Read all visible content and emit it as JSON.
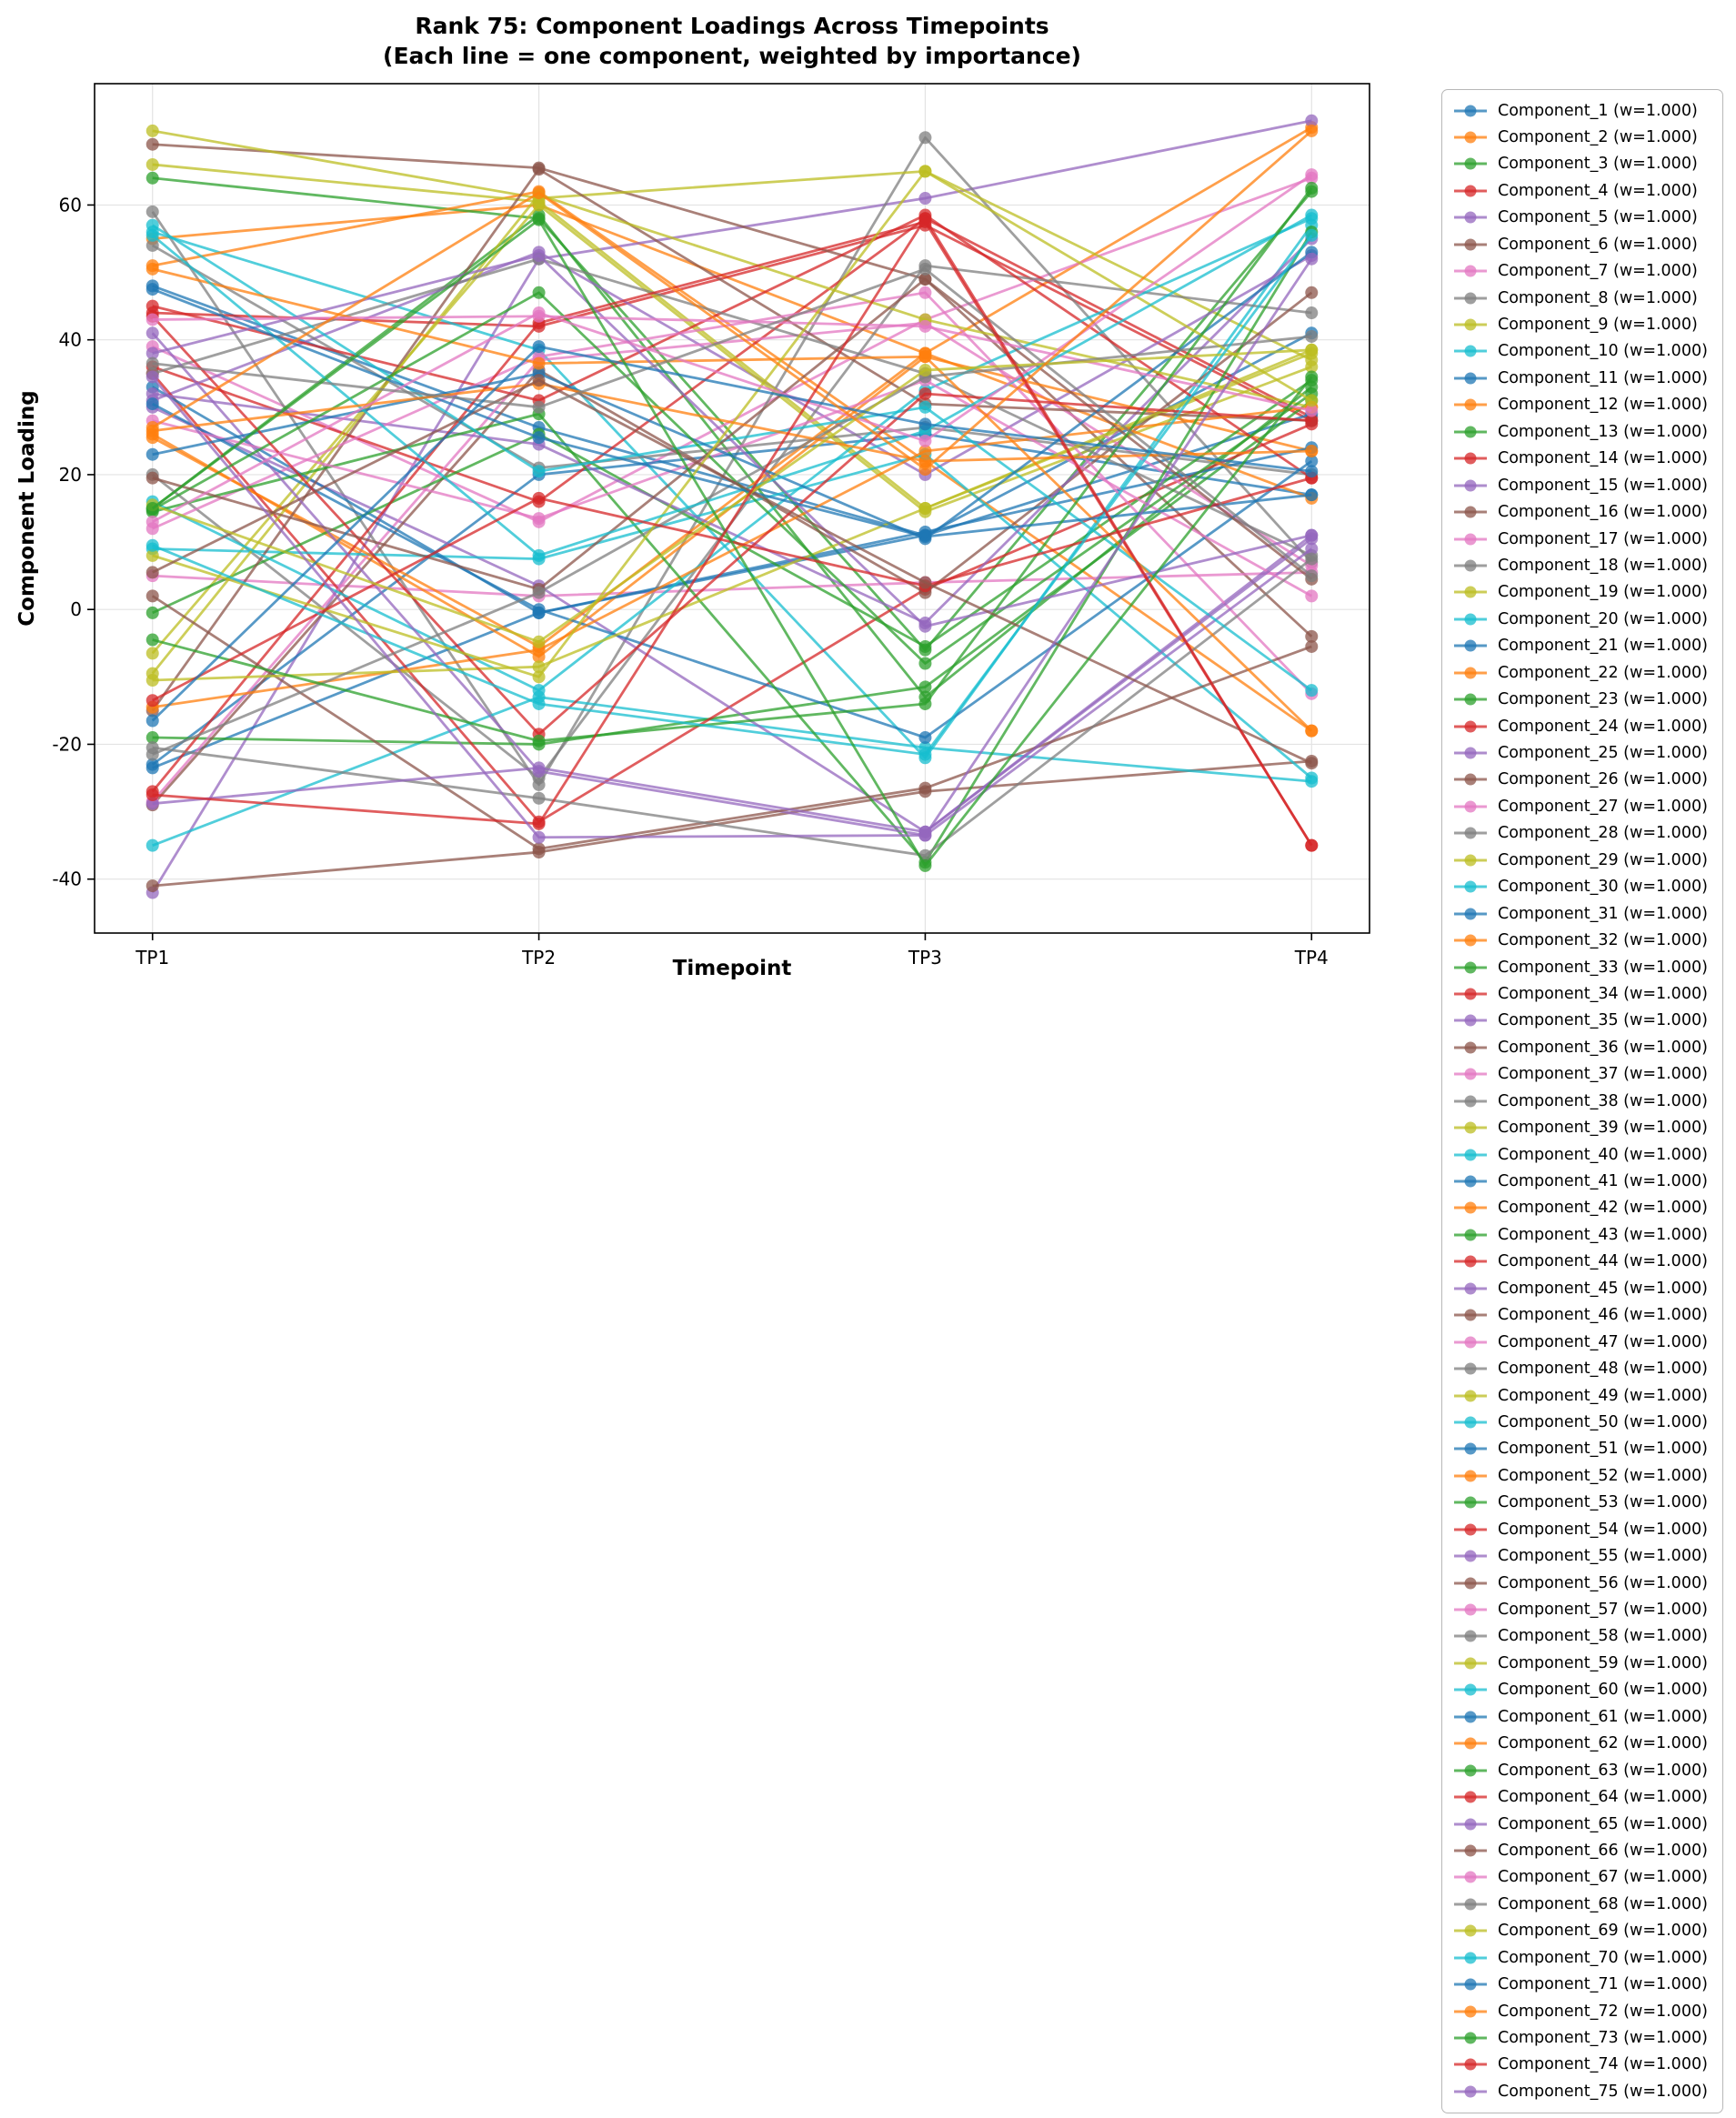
{
  "figure": {
    "title_line1": "Rank 75: Component Loadings Across Timepoints",
    "title_line2": "(Each line = one component, weighted by importance)",
    "xlabel": "Timepoint",
    "ylabel": "Component Loading"
  },
  "chart_data": {
    "type": "line",
    "title": "Rank 75: Component Loadings Across Timepoints (Each line = one component, weighted by importance)",
    "xlabel": "Timepoint",
    "ylabel": "Component Loading",
    "categories": [
      "TP1",
      "TP2",
      "TP3",
      "TP4"
    ],
    "y_ticks": [
      -40,
      -20,
      0,
      20,
      40,
      60
    ],
    "ylim": [
      -48,
      78
    ],
    "grid": true,
    "legend_position": "right",
    "marker": "circle",
    "line_alpha": 0.75,
    "palette": [
      "#1f77b4",
      "#ff7f0e",
      "#2ca02c",
      "#d62728",
      "#9467bd",
      "#8c564b",
      "#e377c2",
      "#7f7f7f",
      "#bcbd22",
      "#17becf"
    ],
    "series": [
      {
        "name": "Component_1",
        "label": "Component_1 (w=1.000)",
        "values": [
          48,
          27,
          11,
          41
        ]
      },
      {
        "name": "Component_2",
        "label": "Component_2 (w=1.000)",
        "values": [
          55,
          60,
          38,
          71.5
        ]
      },
      {
        "name": "Component_3",
        "label": "Component_3 (w=1.000)",
        "values": [
          64,
          58,
          -6,
          62
        ]
      },
      {
        "name": "Component_4",
        "label": "Component_4 (w=1.000)",
        "values": [
          44,
          42,
          57,
          28
        ]
      },
      {
        "name": "Component_5",
        "label": "Component_5 (w=1.000)",
        "values": [
          -42,
          52,
          61,
          72.5
        ]
      },
      {
        "name": "Component_6",
        "label": "Component_6 (w=1.000)",
        "values": [
          69,
          65.5,
          49,
          -4
        ]
      },
      {
        "name": "Component_7",
        "label": "Component_7 (w=1.000)",
        "values": [
          39,
          13,
          43,
          64
        ]
      },
      {
        "name": "Component_8",
        "label": "Component_8 (w=1.000)",
        "values": [
          59,
          -26,
          70,
          7
        ]
      },
      {
        "name": "Component_9",
        "label": "Component_9 (w=1.000)",
        "values": [
          71,
          61,
          65,
          37
        ]
      },
      {
        "name": "Component_10",
        "label": "Component_10 (w=1.000)",
        "values": [
          56,
          38.5,
          -22,
          57
        ]
      },
      {
        "name": "Component_11",
        "label": "Component_11 (w=1.000)",
        "values": [
          -23,
          20,
          26,
          17
        ]
      },
      {
        "name": "Component_12",
        "label": "Component_12 (w=1.000)",
        "values": [
          51,
          62,
          22,
          -18
        ]
      },
      {
        "name": "Component_13",
        "label": "Component_13 (w=1.000)",
        "values": [
          15,
          58.5,
          -13,
          33
        ]
      },
      {
        "name": "Component_14",
        "label": "Component_14 (w=1.000)",
        "values": [
          36,
          16,
          58,
          28.5
        ]
      },
      {
        "name": "Component_15",
        "label": "Component_15 (w=1.000)",
        "values": [
          31,
          53,
          20,
          52.5
        ]
      },
      {
        "name": "Component_16",
        "label": "Component_16 (w=1.000)",
        "values": [
          -41,
          -36,
          -27,
          -22.5
        ]
      },
      {
        "name": "Component_17",
        "label": "Component_17 (w=1.000)",
        "values": [
          5,
          2,
          4,
          5.5
        ]
      },
      {
        "name": "Component_18",
        "label": "Component_18 (w=1.000)",
        "values": [
          20,
          -25,
          51,
          44
        ]
      },
      {
        "name": "Component_19",
        "label": "Component_19 (w=1.000)",
        "values": [
          66,
          60.5,
          15,
          38
        ]
      },
      {
        "name": "Component_20",
        "label": "Component_20 (w=1.000)",
        "values": [
          -35,
          -13,
          -20.5,
          -25.5
        ]
      },
      {
        "name": "Component_21",
        "label": "Component_21 (w=1.000)",
        "values": [
          -23.5,
          -0.5,
          11,
          29
        ]
      },
      {
        "name": "Component_22",
        "label": "Component_22 (w=1.000)",
        "values": [
          26,
          -7,
          37.5,
          23.5
        ]
      },
      {
        "name": "Component_23",
        "label": "Component_23 (w=1.000)",
        "values": [
          -19,
          -20,
          -11.5,
          31
        ]
      },
      {
        "name": "Component_24",
        "label": "Component_24 (w=1.000)",
        "values": [
          35,
          -31.5,
          3,
          27.5
        ]
      },
      {
        "name": "Component_25",
        "label": "Component_25 (w=1.000)",
        "values": [
          30,
          3.5,
          -33,
          11
        ]
      },
      {
        "name": "Component_26",
        "label": "Component_26 (w=1.000)",
        "values": [
          -29,
          35.5,
          2.5,
          47
        ]
      },
      {
        "name": "Component_27",
        "label": "Component_27 (w=1.000)",
        "values": [
          -28.5,
          37,
          42.5,
          6.5
        ]
      },
      {
        "name": "Component_28",
        "label": "Component_28 (w=1.000)",
        "values": [
          54,
          21,
          27,
          20
        ]
      },
      {
        "name": "Component_29",
        "label": "Component_29 (w=1.000)",
        "values": [
          -6.5,
          60,
          14.5,
          36
        ]
      },
      {
        "name": "Component_30",
        "label": "Component_30 (w=1.000)",
        "values": [
          9,
          7.5,
          23,
          -25
        ]
      },
      {
        "name": "Component_31",
        "label": "Component_31 (w=1.000)",
        "values": [
          33,
          -0.5,
          11.5,
          24
        ]
      },
      {
        "name": "Component_32",
        "label": "Component_32 (w=1.000)",
        "values": [
          25.5,
          -5.5,
          38,
          16.5
        ]
      },
      {
        "name": "Component_33",
        "label": "Component_33 (w=1.000)",
        "values": [
          -0.5,
          26,
          -5.5,
          34
        ]
      },
      {
        "name": "Component_34",
        "label": "Component_34 (w=1.000)",
        "values": [
          45,
          31,
          58.5,
          19.5
        ]
      },
      {
        "name": "Component_35",
        "label": "Component_35 (w=1.000)",
        "values": [
          32,
          24.5,
          -2,
          55
        ]
      },
      {
        "name": "Component_36",
        "label": "Component_36 (w=1.000)",
        "values": [
          -15,
          65.3,
          30.5,
          28
        ]
      },
      {
        "name": "Component_37",
        "label": "Component_37 (w=1.000)",
        "values": [
          12,
          37.5,
          47,
          -12.5
        ]
      },
      {
        "name": "Component_38",
        "label": "Component_38 (w=1.000)",
        "values": [
          35,
          52,
          35,
          8
        ]
      },
      {
        "name": "Component_39",
        "label": "Component_39 (w=1.000)",
        "values": [
          -9.5,
          61.5,
          43,
          30
        ]
      },
      {
        "name": "Component_40",
        "label": "Component_40 (w=1.000)",
        "values": [
          16,
          -12,
          32.5,
          58
        ]
      },
      {
        "name": "Component_41",
        "label": "Component_41 (w=1.000)",
        "values": [
          30.5,
          0,
          -19,
          22
        ]
      },
      {
        "name": "Component_42",
        "label": "Component_42 (w=1.000)",
        "values": [
          -14.5,
          -6,
          23.5,
          30
        ]
      },
      {
        "name": "Component_43",
        "label": "Component_43 (w=1.000)",
        "values": [
          14.5,
          29,
          -37.5,
          56
        ]
      },
      {
        "name": "Component_44",
        "label": "Component_44 (w=1.000)",
        "values": [
          -27,
          42.5,
          57.5,
          -35
        ]
      },
      {
        "name": "Component_45",
        "label": "Component_45 (w=1.000)",
        "values": [
          41,
          -24,
          -33.5,
          9
        ]
      },
      {
        "name": "Component_46",
        "label": "Component_46 (w=1.000)",
        "values": [
          2,
          -35.5,
          -26.5,
          -5.5
        ]
      },
      {
        "name": "Component_47",
        "label": "Component_47 (w=1.000)",
        "values": [
          28,
          13.5,
          34,
          2
        ]
      },
      {
        "name": "Component_48",
        "label": "Component_48 (w=1.000)",
        "values": [
          -20.5,
          -28,
          -36.5,
          7.5
        ]
      },
      {
        "name": "Component_49",
        "label": "Component_49 (w=1.000)",
        "values": [
          -10.5,
          -8.5,
          15,
          38.5
        ]
      },
      {
        "name": "Component_50",
        "label": "Component_50 (w=1.000)",
        "values": [
          57,
          20.5,
          30,
          -12
        ]
      },
      {
        "name": "Component_51",
        "label": "Component_51 (w=1.000)",
        "values": [
          23,
          35,
          10.5,
          53
        ]
      },
      {
        "name": "Component_52",
        "label": "Component_52 (w=1.000)",
        "values": [
          50.5,
          36.5,
          37.5,
          -18
        ]
      },
      {
        "name": "Component_53",
        "label": "Component_53 (w=1.000)",
        "values": [
          14.8,
          47,
          -8,
          32
        ]
      },
      {
        "name": "Component_54",
        "label": "Component_54 (w=1.000)",
        "values": [
          43.5,
          -18.5,
          32,
          28
        ]
      },
      {
        "name": "Component_55",
        "label": "Component_55 (w=1.000)",
        "values": [
          38,
          52.5,
          -2.5,
          11
        ]
      },
      {
        "name": "Component_56",
        "label": "Component_56 (w=1.000)",
        "values": [
          19.5,
          3,
          49,
          4.5
        ]
      },
      {
        "name": "Component_57",
        "label": "Component_57 (w=1.000)",
        "values": [
          43,
          43.5,
          42,
          29.5
        ]
      },
      {
        "name": "Component_58",
        "label": "Component_58 (w=1.000)",
        "values": [
          -21.5,
          2.5,
          34.5,
          40.5
        ]
      },
      {
        "name": "Component_59",
        "label": "Component_59 (w=1.000)",
        "values": [
          8,
          -10,
          65,
          31
        ]
      },
      {
        "name": "Component_60",
        "label": "Component_60 (w=1.000)",
        "values": [
          55.5,
          8,
          26.5,
          58.5
        ]
      },
      {
        "name": "Component_61",
        "label": "Component_61 (w=1.000)",
        "values": [
          47.5,
          25.5,
          10.8,
          17
        ]
      },
      {
        "name": "Component_62",
        "label": "Component_62 (w=1.000)",
        "values": [
          26.5,
          33.5,
          22,
          23.5
        ]
      },
      {
        "name": "Component_63",
        "label": "Component_63 (w=1.000)",
        "values": [
          -4.5,
          -19.5,
          -14,
          62.5
        ]
      },
      {
        "name": "Component_64",
        "label": "Component_64 (w=1.000)",
        "values": [
          -13.5,
          16.5,
          3.5,
          19.5
        ]
      },
      {
        "name": "Component_65",
        "label": "Component_65 (w=1.000)",
        "values": [
          -28.8,
          -23.5,
          -33,
          10.5
        ]
      },
      {
        "name": "Component_66",
        "label": "Component_66 (w=1.000)",
        "values": [
          5.5,
          34,
          4,
          -22.8
        ]
      },
      {
        "name": "Component_67",
        "label": "Component_67 (w=1.000)",
        "values": [
          13,
          44,
          25,
          64.5
        ]
      },
      {
        "name": "Component_68",
        "label": "Component_68 (w=1.000)",
        "values": [
          36.5,
          30,
          50.5,
          5
        ]
      },
      {
        "name": "Component_69",
        "label": "Component_69 (w=1.000)",
        "values": [
          15.5,
          -4.8,
          35.5,
          38.5
        ]
      },
      {
        "name": "Component_70",
        "label": "Component_70 (w=1.000)",
        "values": [
          9.5,
          -14,
          -21.5,
          55.5
        ]
      },
      {
        "name": "Component_71",
        "label": "Component_71 (w=1.000)",
        "values": [
          -16.5,
          39,
          27.5,
          20.5
        ]
      },
      {
        "name": "Component_72",
        "label": "Component_72 (w=1.000)",
        "values": [
          27,
          61.8,
          20.8,
          71
        ]
      },
      {
        "name": "Component_73",
        "label": "Component_73 (w=1.000)",
        "values": [
          15,
          57.8,
          -38,
          34.5
        ]
      },
      {
        "name": "Component_74",
        "label": "Component_74 (w=1.000)",
        "values": [
          -27.5,
          -31.8,
          58,
          -35
        ]
      },
      {
        "name": "Component_75",
        "label": "Component_75 (w=1.000)",
        "values": [
          34.5,
          -33.8,
          -33.5,
          52
        ]
      }
    ]
  }
}
